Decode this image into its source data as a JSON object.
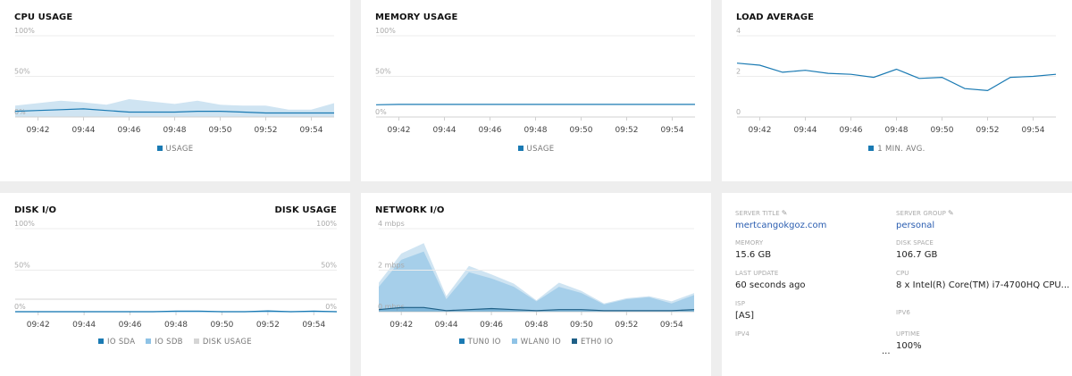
{
  "colors": {
    "usage": "#1a7ab3",
    "light": "#a6cfea",
    "lighter": "#cfe4f2",
    "grid": "#ececec",
    "axis": "#d0d0d0"
  },
  "cpu": {
    "title": "CPU USAGE",
    "y_ticks": [
      "100%",
      "50%",
      "0%"
    ],
    "legend": [
      {
        "label": "USAGE",
        "color": "#1a7ab3"
      }
    ]
  },
  "memory": {
    "title": "MEMORY USAGE",
    "y_ticks": [
      "100%",
      "50%",
      "0%"
    ],
    "legend": [
      {
        "label": "USAGE",
        "color": "#1a7ab3"
      }
    ]
  },
  "load": {
    "title": "LOAD AVERAGE",
    "y_ticks": [
      "4",
      "2",
      "0"
    ],
    "legend": [
      {
        "label": "1 MIN. AVG.",
        "color": "#1a7ab3"
      }
    ]
  },
  "disk": {
    "title": "DISK I/O",
    "title_right": "DISK USAGE",
    "y_ticks": [
      "100%",
      "50%",
      "0%"
    ],
    "y_ticks_right": [
      "100%",
      "50%",
      "0%"
    ],
    "legend": [
      {
        "label": "IO SDA",
        "color": "#1a7ab3"
      },
      {
        "label": "IO SDB",
        "color": "#8fc3e6"
      },
      {
        "label": "DISK USAGE",
        "color": "#d5d5d5"
      }
    ]
  },
  "network": {
    "title": "NETWORK I/O",
    "y_ticks": [
      "4 mbps",
      "2 mbps",
      "0 mbps"
    ],
    "legend": [
      {
        "label": "TUN0 IO",
        "color": "#1a7ab3"
      },
      {
        "label": "WLAN0 IO",
        "color": "#8fc3e6"
      },
      {
        "label": "ETH0 IO",
        "color": "#1e5f86"
      }
    ]
  },
  "x_ticks": [
    "09:42",
    "09:44",
    "09:46",
    "09:48",
    "09:50",
    "09:52",
    "09:54"
  ],
  "chart_data": [
    {
      "type": "area",
      "title": "CPU USAGE",
      "ylim": [
        0,
        100
      ],
      "yunit": "%",
      "x": [
        "09:41",
        "09:42",
        "09:43",
        "09:44",
        "09:45",
        "09:46",
        "09:47",
        "09:48",
        "09:49",
        "09:50",
        "09:51",
        "09:52",
        "09:53",
        "09:54",
        "09:55"
      ],
      "series": [
        {
          "name": "USAGE",
          "values": [
            7,
            8,
            9,
            10,
            8,
            6,
            6,
            6,
            7,
            7,
            6,
            5,
            5,
            5,
            5
          ]
        },
        {
          "name": "",
          "values": [
            14,
            17,
            20,
            18,
            15,
            22,
            19,
            16,
            20,
            15,
            14,
            14,
            9,
            9,
            17
          ]
        }
      ]
    },
    {
      "type": "line",
      "title": "MEMORY USAGE",
      "ylim": [
        0,
        100
      ],
      "yunit": "%",
      "x": [
        "09:41",
        "09:42",
        "09:43",
        "09:44",
        "09:45",
        "09:46",
        "09:47",
        "09:48",
        "09:49",
        "09:50",
        "09:51",
        "09:52",
        "09:53",
        "09:54",
        "09:55"
      ],
      "series": [
        {
          "name": "USAGE",
          "values": [
            15,
            15.5,
            15.5,
            15.5,
            15.5,
            15.5,
            15.5,
            15.5,
            15.5,
            15.5,
            15.5,
            15.5,
            15.5,
            15.5,
            15.5
          ]
        }
      ]
    },
    {
      "type": "line",
      "title": "LOAD AVERAGE",
      "ylim": [
        0,
        4
      ],
      "x": [
        "09:41",
        "09:42",
        "09:43",
        "09:44",
        "09:45",
        "09:46",
        "09:47",
        "09:48",
        "09:49",
        "09:50",
        "09:51",
        "09:52",
        "09:53",
        "09:54",
        "09:55"
      ],
      "series": [
        {
          "name": "1 MIN. AVG.",
          "values": [
            2.65,
            2.55,
            2.2,
            2.3,
            2.15,
            2.1,
            1.95,
            2.35,
            1.9,
            1.95,
            1.4,
            1.3,
            1.95,
            2.0,
            2.1
          ]
        }
      ]
    },
    {
      "type": "line",
      "title": "DISK I/O",
      "ylim": [
        0,
        100
      ],
      "yunit": "%",
      "x": [
        "09:41",
        "09:42",
        "09:43",
        "09:44",
        "09:45",
        "09:46",
        "09:47",
        "09:48",
        "09:49",
        "09:50",
        "09:51",
        "09:52",
        "09:53",
        "09:54",
        "09:55"
      ],
      "series": [
        {
          "name": "IO SDA",
          "values": [
            0,
            0,
            0,
            0,
            0,
            0,
            0,
            0.8,
            0.8,
            0,
            0,
            1,
            0,
            0.8,
            0
          ]
        },
        {
          "name": "IO SDB",
          "values": [
            0,
            0,
            0,
            0,
            0,
            0,
            0,
            0,
            0,
            0,
            0,
            0,
            0,
            0,
            0
          ]
        },
        {
          "name": "DISK USAGE",
          "values": [
            15,
            15,
            15,
            15,
            15,
            15,
            15,
            15,
            15,
            15,
            15,
            15,
            15,
            15,
            15
          ]
        }
      ]
    },
    {
      "type": "area",
      "title": "NETWORK I/O",
      "ylim": [
        0,
        4
      ],
      "yunit": "mbps",
      "x": [
        "09:41",
        "09:42",
        "09:43",
        "09:44",
        "09:45",
        "09:46",
        "09:47",
        "09:48",
        "09:49",
        "09:50",
        "09:51",
        "09:52",
        "09:53",
        "09:54",
        "09:55"
      ],
      "series": [
        {
          "name": "TUN0 IO",
          "values": [
            0.1,
            0.2,
            0.2,
            0.05,
            0.1,
            0.15,
            0.1,
            0.05,
            0.1,
            0.1,
            0.05,
            0.05,
            0.05,
            0.05,
            0.1
          ]
        },
        {
          "name": "WLAN0 IO",
          "values": [
            1.2,
            2.5,
            2.9,
            0.6,
            1.9,
            1.6,
            1.2,
            0.5,
            1.2,
            0.9,
            0.35,
            0.6,
            0.7,
            0.4,
            0.8
          ]
        },
        {
          "name": "ETH0 IO",
          "values": [
            1.4,
            2.8,
            3.3,
            0.75,
            2.2,
            1.8,
            1.35,
            0.55,
            1.4,
            1.0,
            0.4,
            0.65,
            0.75,
            0.5,
            0.9
          ]
        }
      ]
    }
  ],
  "server_info": {
    "title_label": "SERVER TITLE",
    "title_value": "mertcangokgoz.com",
    "group_label": "SERVER GROUP",
    "group_value": "personal",
    "memory_label": "MEMORY",
    "memory_value": "15.6 GB",
    "disk_label": "DISK SPACE",
    "disk_value": "106.7 GB",
    "update_label": "LAST UPDATE",
    "update_value": "60 seconds ago",
    "cpu_label": "CPU",
    "cpu_value": "8 x Intel(R) Core(TM) i7-4700HQ CPU...",
    "isp_label": "ISP",
    "isp_value": "[AS]",
    "ipv6_label": "IPV6",
    "ipv6_value": "",
    "ipv4_label": "IPV4",
    "ipv4_value": "...",
    "uptime_label": "UPTIME",
    "uptime_value": "100%",
    "pencil_icon": "✎"
  }
}
